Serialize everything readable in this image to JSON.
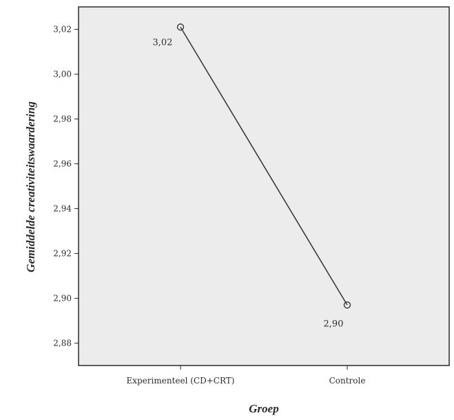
{
  "chart_data": {
    "type": "line",
    "categories": [
      "Experimenteel (CD+CRT)",
      "Controle"
    ],
    "series": [
      {
        "values": [
          3.021,
          2.897
        ],
        "labels": [
          "3,02",
          "2,90"
        ]
      }
    ],
    "title": "",
    "xlabel": "Groep",
    "ylabel": "Gemiddelde creativiteitswaardering",
    "ylim": [
      2.87,
      3.03
    ],
    "yticks": [
      3.02,
      3.0,
      2.98,
      2.96,
      2.94,
      2.92,
      2.9,
      2.88
    ],
    "ytick_labels": [
      "3,02",
      "3,00",
      "2,98",
      "2,96",
      "2,94",
      "2,92",
      "2,90",
      "2,88"
    ],
    "grid": false,
    "colors": {
      "plot_background": "#ececec",
      "line": "#3a3a3a",
      "axis": "#2a2a2a"
    }
  }
}
